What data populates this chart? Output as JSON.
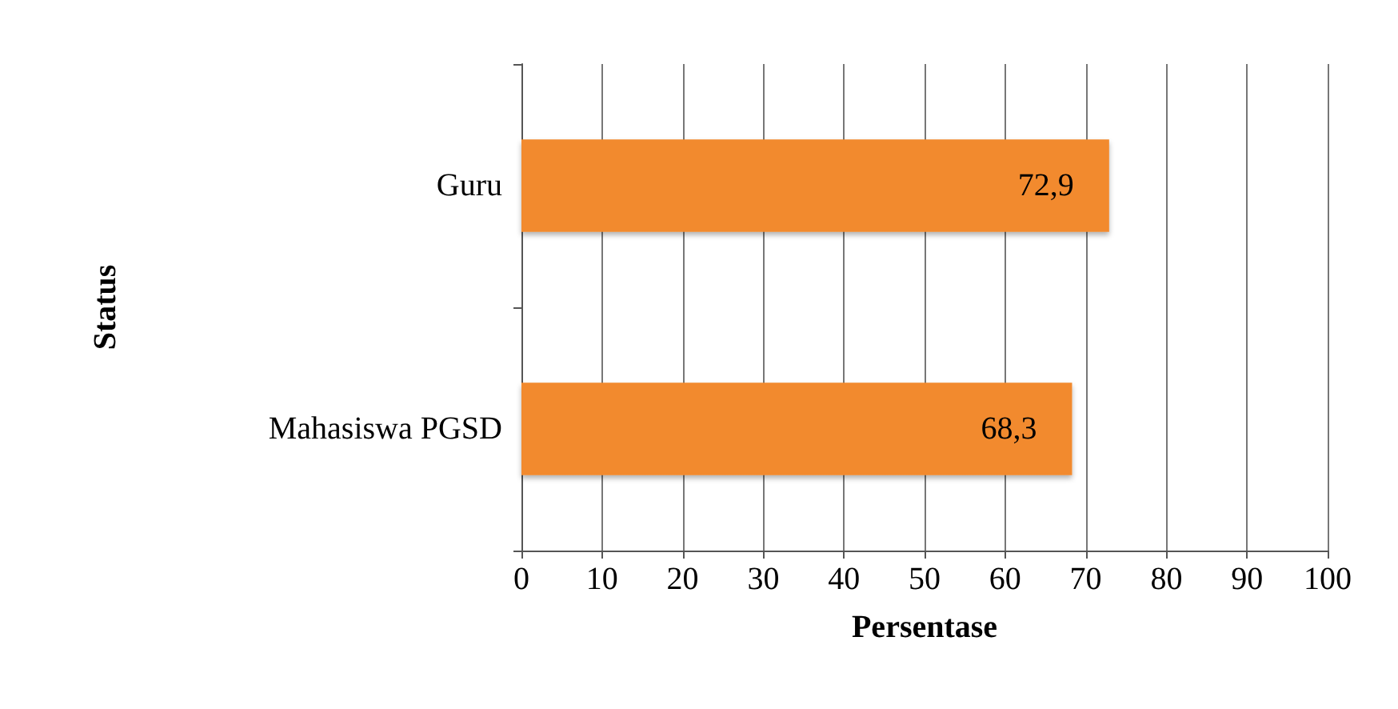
{
  "chart_data": {
    "type": "bar",
    "orientation": "horizontal",
    "xlabel": "Persentase",
    "ylabel": "Status",
    "categories": [
      "Guru",
      "Mahasiswa PGSD"
    ],
    "values": [
      72.9,
      68.3
    ],
    "value_labels": [
      "72,9",
      "68,3"
    ],
    "color": "#f28a2e",
    "xlim": [
      0,
      100
    ],
    "xticks": [
      0,
      10,
      20,
      30,
      40,
      50,
      60,
      70,
      80,
      90,
      100
    ],
    "grid": "x"
  }
}
